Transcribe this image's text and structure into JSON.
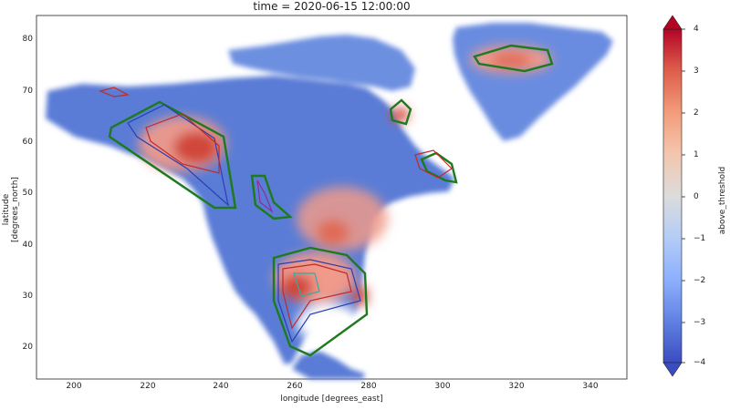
{
  "map": {
    "title": "time = 2020-06-15 12:00:00",
    "xlabel": "longitude [degrees_east]",
    "ylabel": "latitude [degrees_north]",
    "xticks": [
      "200",
      "220",
      "240",
      "260",
      "280",
      "300",
      "320",
      "340"
    ],
    "yticks": [
      "80",
      "70",
      "60",
      "50",
      "40",
      "30",
      "20"
    ],
    "xrange": [
      190,
      350
    ],
    "yrange": [
      14,
      86
    ],
    "colorbar": {
      "label": "above_threshold",
      "ticks": [
        "4",
        "3",
        "2",
        "1",
        "0",
        "−1",
        "−2",
        "−3",
        "−4"
      ],
      "range": [
        -4,
        4
      ],
      "colormap": "coolwarm"
    },
    "colors": {
      "land_base": "#5a7bd6",
      "ocean": "#ffffff",
      "hot": "#d1473a",
      "warm": "#ef9a8a",
      "contour_green": "#1d7a1d",
      "contour_blue": "#2b3fb0",
      "contour_red": "#c02a2a",
      "contour_purple": "#8a2f9a",
      "contour_cyan": "#33aaaa"
    }
  }
}
